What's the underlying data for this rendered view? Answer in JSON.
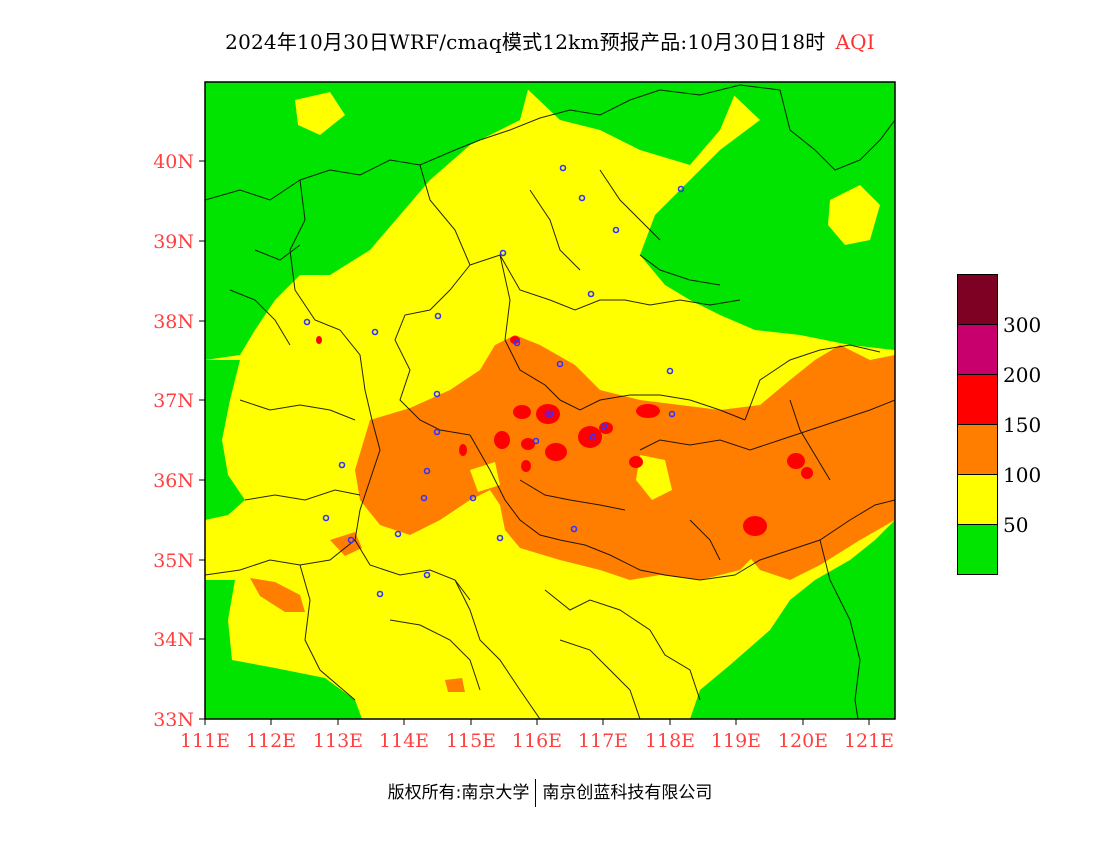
{
  "title": {
    "text": "2024年10月30日WRF/cmaq模式12km预报产品:10月30日18时",
    "variable": "AQI"
  },
  "axes": {
    "x_ticks": [
      "111E",
      "112E",
      "113E",
      "114E",
      "115E",
      "116E",
      "117E",
      "118E",
      "119E",
      "120E",
      "121E"
    ],
    "y_ticks": [
      "33N",
      "34N",
      "35N",
      "36N",
      "37N",
      "38N",
      "39N",
      "40N"
    ]
  },
  "legend": {
    "labels": [
      "50",
      "100",
      "150",
      "200",
      "300"
    ],
    "colors": {
      "0-50": "#00e400",
      "50-100": "#ffff00",
      "100-150": "#ff7e00",
      "150-200": "#ff0000",
      "200-300": "#c8006e",
      "300+": "#7e0023"
    }
  },
  "copyright": {
    "owner": "版权所有:南京大学",
    "partner": "南京创蓝科技有限公司"
  }
}
